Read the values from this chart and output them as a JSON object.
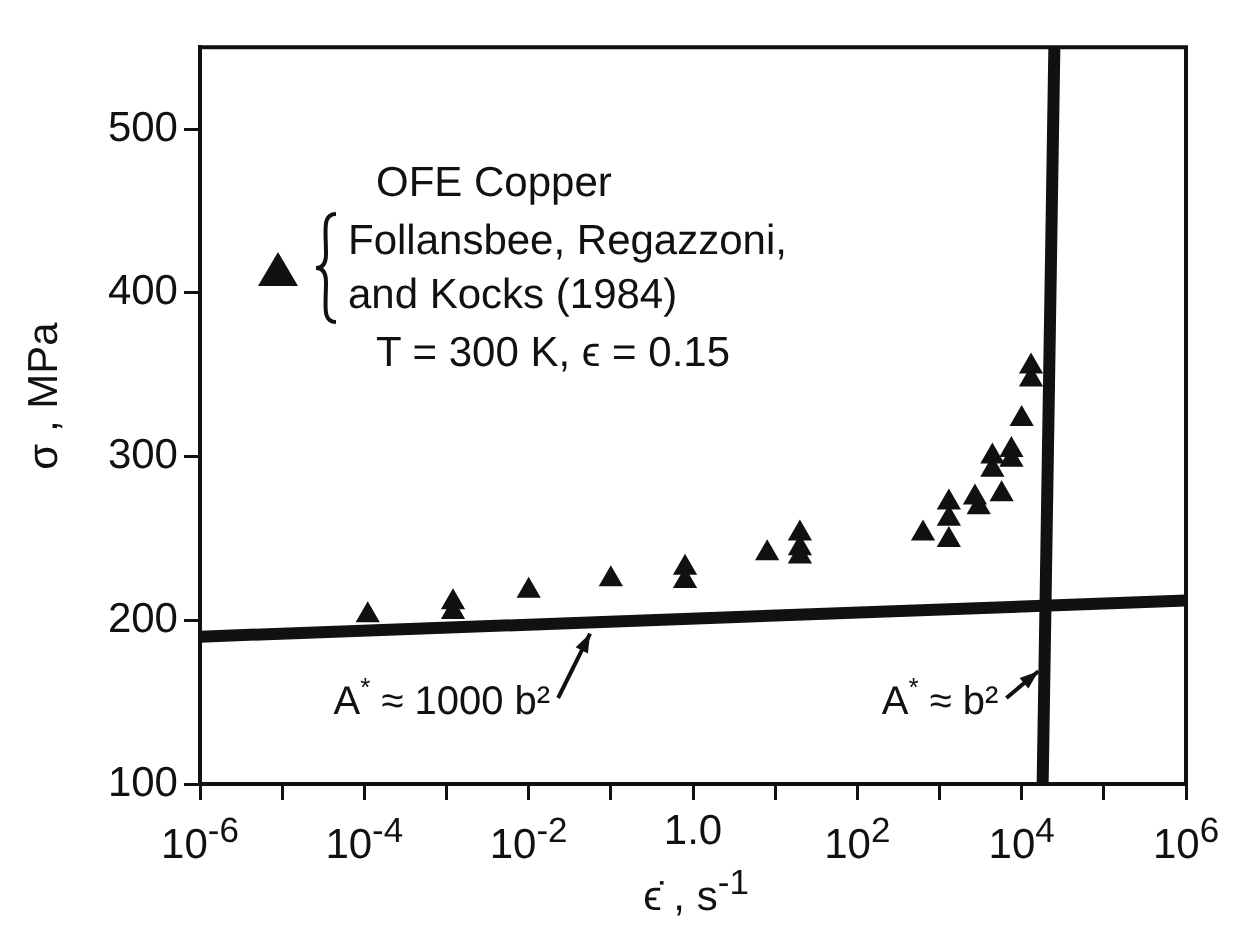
{
  "chart_data": {
    "type": "scatter",
    "xlabel": "ϵ̇ , s$^{-1}$",
    "ylabel": "σ , MPa",
    "xlim": [
      1e-06,
      1000000
    ],
    "ylim": [
      100,
      550
    ],
    "log": "x",
    "xticks": [
      {
        "value": 1e-06,
        "label": "10$^{-6}$"
      },
      {
        "value": 1e-05,
        "label": null
      },
      {
        "value": 0.0001,
        "label": "10$^{-4}$"
      },
      {
        "value": 0.001,
        "label": null
      },
      {
        "value": 0.01,
        "label": "10$^{-2}$"
      },
      {
        "value": 0.1,
        "label": null
      },
      {
        "value": 1,
        "label": "1.0"
      },
      {
        "value": 10,
        "label": null
      },
      {
        "value": 100,
        "label": "10$^{2}$"
      },
      {
        "value": 1000,
        "label": null
      },
      {
        "value": 10000,
        "label": "10$^{4}$"
      },
      {
        "value": 100000,
        "label": null
      },
      {
        "value": 1000000,
        "label": "10$^{6}$"
      }
    ],
    "yticks": [
      100,
      200,
      300,
      400,
      500
    ],
    "grid": false,
    "legend": "top left",
    "series": [
      {
        "name": "Follansbee, Regazzoni, and Kocks (1984)",
        "type": "scatter",
        "marker": "triangle",
        "color": "#111111",
        "x": [
          0.00011,
          0.0012,
          0.0012,
          0.01,
          0.1,
          0.8,
          0.8,
          8,
          20,
          20,
          20,
          630,
          1300,
          1300,
          1300,
          2700,
          3000,
          4400,
          4400,
          5700,
          7500,
          7500,
          10000,
          13000,
          13000
        ],
        "values": [
          203,
          211,
          205,
          218,
          225,
          224,
          232,
          241,
          253,
          244,
          239,
          253,
          272,
          262,
          249,
          275,
          269,
          300,
          292,
          277,
          304,
          298,
          323,
          355,
          347
        ]
      },
      {
        "type": "line",
        "marker": "none",
        "color": "#111111",
        "x": [
          1e-06,
          1000000
        ],
        "values": [
          190,
          212
        ]
      },
      {
        "type": "line",
        "marker": "none",
        "color": "#111111",
        "x": [
          25000,
          18000
        ],
        "values": [
          550,
          100
        ]
      }
    ],
    "annotations": [
      "OFE Copper",
      "T = 300 K, ϵ = 0.15",
      {
        "text": "A$^{*}$ ≈ 1000 b²",
        "x": 0.07,
        "y": 198
      },
      {
        "text": "A$^{*}$ ≈ b²",
        "x": 20000,
        "y": 175
      }
    ]
  }
}
